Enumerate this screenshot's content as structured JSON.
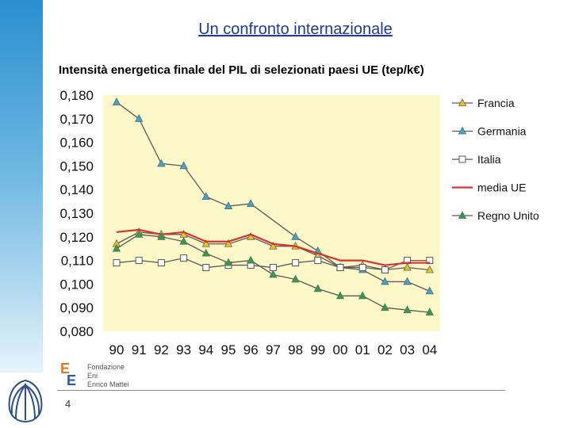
{
  "slide": {
    "title": "Un confronto internazionale",
    "subtitle": "Intensità energetica finale del PIL di selezionati paesi UE (tep/k€)",
    "page_number": "4"
  },
  "logo": {
    "line1": "Fondazione",
    "line2": "Eni",
    "line3": "Enrico Mattei"
  },
  "colors": {
    "plot_bg": "#fdf8c8",
    "francia": "#e6c619",
    "germania": "#3aa6cf",
    "italia": "#ffffff",
    "media_ue": "#d93030",
    "regno_unito": "#2ea043"
  },
  "chart_data": {
    "type": "line",
    "title": "",
    "xlabel": "",
    "ylabel": "",
    "categories": [
      "90",
      "91",
      "92",
      "93",
      "94",
      "95",
      "96",
      "97",
      "98",
      "99",
      "00",
      "01",
      "02",
      "03",
      "04"
    ],
    "ylim": [
      0.08,
      0.18
    ],
    "yticks": [
      "0,080",
      "0,090",
      "0,100",
      "0,110",
      "0,120",
      "0,130",
      "0,140",
      "0,150",
      "0,160",
      "0,170",
      "0,180"
    ],
    "grid": false,
    "legend_position": "right",
    "series": [
      {
        "name": "Francia",
        "marker": "triangle",
        "color": "#e6c619",
        "values": [
          0.117,
          0.122,
          0.121,
          0.121,
          0.117,
          0.117,
          0.12,
          0.116,
          0.116,
          0.112,
          0.107,
          0.108,
          0.106,
          0.107,
          0.106
        ]
      },
      {
        "name": "Germania",
        "marker": "triangle",
        "color": "#3aa6cf",
        "values": [
          0.177,
          0.17,
          0.151,
          0.15,
          0.137,
          0.133,
          0.134,
          null,
          0.12,
          0.114,
          0.107,
          0.106,
          0.101,
          0.101,
          0.097
        ]
      },
      {
        "name": "Italia",
        "marker": "square",
        "color": "#ffffff",
        "values": [
          0.109,
          0.11,
          0.109,
          0.111,
          0.107,
          0.108,
          0.108,
          0.107,
          0.109,
          0.11,
          0.107,
          0.107,
          0.106,
          0.11,
          0.11
        ]
      },
      {
        "name": "media UE",
        "marker": "none",
        "color": "#d93030",
        "values": [
          0.122,
          0.123,
          0.121,
          0.122,
          0.118,
          0.118,
          0.121,
          0.117,
          0.116,
          0.113,
          0.11,
          0.11,
          0.108,
          0.109,
          0.109
        ]
      },
      {
        "name": "Regno Unito",
        "marker": "triangle",
        "color": "#2ea043",
        "values": [
          0.115,
          0.121,
          0.12,
          0.118,
          0.113,
          0.109,
          0.11,
          0.104,
          0.102,
          0.098,
          0.095,
          0.095,
          0.09,
          0.089,
          0.088
        ]
      }
    ]
  }
}
